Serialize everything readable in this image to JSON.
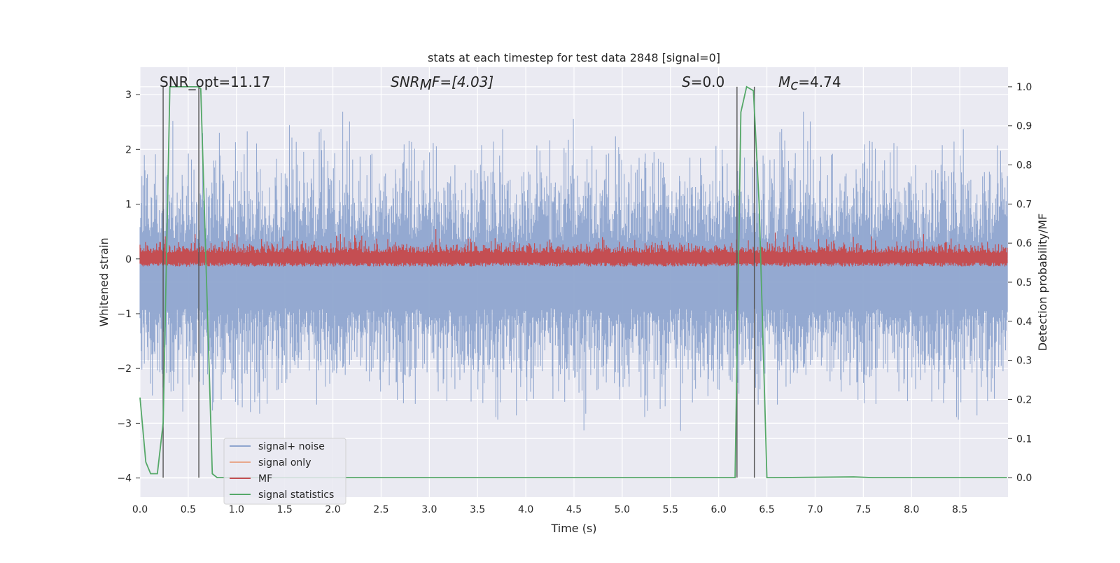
{
  "chart_data": {
    "type": "line",
    "title": "stats at each timestep for test data 2848 [signal=0]",
    "xlabel": "Time (s)",
    "ylabel_left": "Whitened strain",
    "ylabel_right": "Detection probability/MF",
    "xlim": [
      0.0,
      9.0
    ],
    "ylim_left": [
      -4.35,
      3.5
    ],
    "ylim_right": [
      -0.05,
      1.05
    ],
    "xticks": [
      "0.0",
      "0.5",
      "1.0",
      "1.5",
      "2.0",
      "2.5",
      "3.0",
      "3.5",
      "4.0",
      "4.5",
      "5.0",
      "5.5",
      "6.0",
      "6.5",
      "7.0",
      "7.5",
      "8.0",
      "8.5"
    ],
    "yticks_left": [
      "3",
      "2",
      "1",
      "0",
      "−1",
      "−2",
      "−3",
      "−4"
    ],
    "yticks_left_values": [
      3,
      2,
      1,
      0,
      -1,
      -2,
      -3,
      -4
    ],
    "yticks_right": [
      "1.0",
      "0.9",
      "0.8",
      "0.7",
      "0.6",
      "0.5",
      "0.4",
      "0.3",
      "0.2",
      "0.1",
      "0.0"
    ],
    "yticks_right_values": [
      1.0,
      0.9,
      0.8,
      0.7,
      0.6,
      0.5,
      0.4,
      0.3,
      0.2,
      0.1,
      0.0
    ],
    "annotations": {
      "snr_opt": "SNR_opt=11.17",
      "snr_mf_main": "SNR",
      "snr_mf_sub": "M",
      "snr_mf_rest": "F=[4.03]",
      "s_main": "S",
      "s_rest": "=0.0",
      "mc_main": "M",
      "mc_sub": "c",
      "mc_rest": "=4.74"
    },
    "vertical_markers_x": [
      0.24,
      0.61,
      6.19,
      6.37
    ],
    "series": [
      {
        "name": "signal+ noise",
        "color": "#8fa5cf",
        "description_range": [
          -4.0,
          3.4
        ],
        "mean": -0.3
      },
      {
        "name": "signal only",
        "color": "#e8a88c",
        "values": []
      },
      {
        "name": "MF",
        "color": "#c44e52",
        "range_right_axis": [
          0.54,
          0.67
        ]
      },
      {
        "name": "signal statistics",
        "color": "#55a868",
        "x": [
          0.0,
          0.06,
          0.11,
          0.18,
          0.24,
          0.31,
          0.6,
          0.63,
          0.75,
          0.8,
          6.1,
          6.17,
          6.23,
          6.29,
          6.36,
          6.42,
          6.5,
          6.57,
          7.4,
          7.6,
          8.99
        ],
        "y": [
          0.205,
          0.04,
          0.01,
          0.01,
          0.14,
          1.0,
          1.0,
          0.995,
          0.01,
          0.0,
          0.0,
          0.0,
          0.935,
          1.0,
          0.99,
          0.7,
          0.0,
          0.0,
          0.002,
          0.0,
          0.0
        ]
      }
    ],
    "legend": {
      "placement": "lower-left",
      "items": [
        "signal+ noise",
        "signal only",
        "MF",
        "signal statistics"
      ]
    },
    "grid": true
  },
  "colors": {
    "axes_bg": "#eaeaf2",
    "grid": "#ffffff",
    "noise": "#8fa5cf",
    "signal_only": "#e8a88c",
    "mf": "#c44e52",
    "stats": "#55a868",
    "marker": "#555555"
  }
}
